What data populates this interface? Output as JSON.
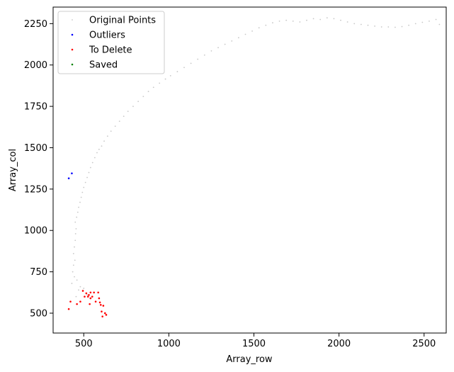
{
  "chart_data": {
    "type": "scatter",
    "xlabel": "Array_row",
    "ylabel": "Array_col",
    "xlim": [
      320,
      2630
    ],
    "ylim": [
      380,
      2350
    ],
    "xticks": [
      500,
      1000,
      1500,
      2000,
      2500
    ],
    "yticks": [
      500,
      750,
      1000,
      1250,
      1500,
      1750,
      2000,
      2250
    ],
    "grid": false,
    "legend_position": "top-left",
    "series": [
      {
        "name": "Original Points",
        "color": "#c8c8c8",
        "points": [
          [
            435,
            750
          ],
          [
            440,
            790
          ],
          [
            448,
            820
          ],
          [
            440,
            860
          ],
          [
            445,
            900
          ],
          [
            450,
            940
          ],
          [
            452,
            980
          ],
          [
            455,
            1010
          ],
          [
            450,
            1050
          ],
          [
            458,
            1080
          ],
          [
            465,
            1110
          ],
          [
            470,
            1140
          ],
          [
            478,
            1170
          ],
          [
            485,
            1200
          ],
          [
            492,
            1230
          ],
          [
            500,
            1260
          ],
          [
            510,
            1290
          ],
          [
            520,
            1320
          ],
          [
            530,
            1350
          ],
          [
            540,
            1380
          ],
          [
            552,
            1410
          ],
          [
            565,
            1440
          ],
          [
            578,
            1470
          ],
          [
            590,
            1490
          ],
          [
            605,
            1510
          ],
          [
            620,
            1540
          ],
          [
            640,
            1570
          ],
          [
            660,
            1600
          ],
          [
            685,
            1630
          ],
          [
            710,
            1660
          ],
          [
            735,
            1690
          ],
          [
            760,
            1720
          ],
          [
            790,
            1750
          ],
          [
            820,
            1780
          ],
          [
            850,
            1810
          ],
          [
            880,
            1840
          ],
          [
            910,
            1865
          ],
          [
            945,
            1890
          ],
          [
            980,
            1915
          ],
          [
            1010,
            1935
          ],
          [
            1050,
            1960
          ],
          [
            1090,
            1985
          ],
          [
            1130,
            2010
          ],
          [
            1170,
            2035
          ],
          [
            1210,
            2060
          ],
          [
            1250,
            2085
          ],
          [
            1290,
            2105
          ],
          [
            1330,
            2125
          ],
          [
            1370,
            2145
          ],
          [
            1410,
            2165
          ],
          [
            1450,
            2185
          ],
          [
            1490,
            2205
          ],
          [
            1530,
            2225
          ],
          [
            1570,
            2240
          ],
          [
            1610,
            2255
          ],
          [
            1650,
            2265
          ],
          [
            1690,
            2270
          ],
          [
            1730,
            2265
          ],
          [
            1770,
            2260
          ],
          [
            1810,
            2270
          ],
          [
            1850,
            2280
          ],
          [
            1890,
            2275
          ],
          [
            1930,
            2285
          ],
          [
            1970,
            2280
          ],
          [
            2010,
            2270
          ],
          [
            2050,
            2260
          ],
          [
            2090,
            2250
          ],
          [
            2130,
            2245
          ],
          [
            2170,
            2240
          ],
          [
            2210,
            2235
          ],
          [
            2250,
            2230
          ],
          [
            2290,
            2230
          ],
          [
            2330,
            2228
          ],
          [
            2370,
            2232
          ],
          [
            2410,
            2240
          ],
          [
            2450,
            2250
          ],
          [
            2490,
            2258
          ],
          [
            2530,
            2265
          ],
          [
            2570,
            2275
          ],
          [
            2590,
            2245
          ],
          [
            455,
            600
          ],
          [
            470,
            640
          ],
          [
            460,
            700
          ],
          [
            480,
            660
          ],
          [
            445,
            720
          ],
          [
            520,
            610
          ],
          [
            430,
            680
          ],
          [
            500,
            650
          ]
        ]
      },
      {
        "name": "Outliers",
        "color": "#0000ff",
        "points": [
          [
            412,
            1315
          ],
          [
            430,
            1345
          ]
        ]
      },
      {
        "name": "To Delete",
        "color": "#ff0000",
        "points": [
          [
            412,
            525
          ],
          [
            422,
            570
          ],
          [
            460,
            555
          ],
          [
            480,
            570
          ],
          [
            495,
            635
          ],
          [
            505,
            600
          ],
          [
            515,
            620
          ],
          [
            525,
            600
          ],
          [
            535,
            555
          ],
          [
            540,
            625
          ],
          [
            550,
            600
          ],
          [
            560,
            625
          ],
          [
            570,
            570
          ],
          [
            585,
            625
          ],
          [
            590,
            590
          ],
          [
            595,
            565
          ],
          [
            600,
            550
          ],
          [
            605,
            510
          ],
          [
            610,
            480
          ],
          [
            615,
            545
          ],
          [
            625,
            500
          ],
          [
            632,
            490
          ],
          [
            540,
            590
          ],
          [
            530,
            610
          ]
        ]
      },
      {
        "name": "Saved",
        "color": "#008000",
        "points": []
      }
    ]
  }
}
